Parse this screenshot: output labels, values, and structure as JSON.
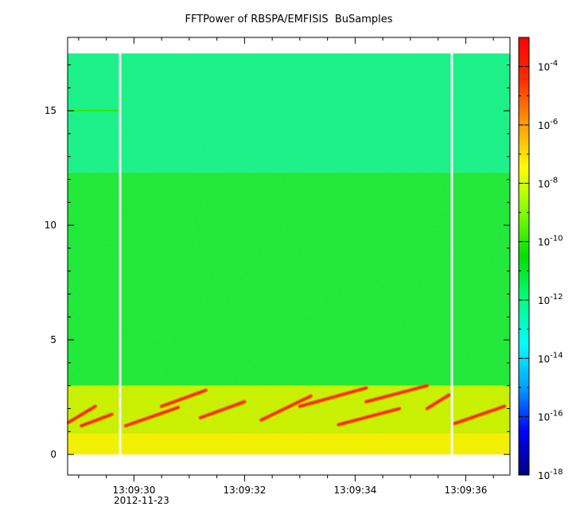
{
  "chart_data": {
    "type": "heatmap",
    "title": "FFTPower of RBSPA/EMFISIS  BuSamples",
    "xlabel": "",
    "ylabel": "",
    "x_axis": {
      "ticks": [
        "13:09:30",
        "13:09:32",
        "13:09:34",
        "13:09:36"
      ],
      "date_label": "2012-11-23",
      "range_seconds": [
        "13:09:28.8",
        "13:09:36.8"
      ]
    },
    "y_axis": {
      "ticks": [
        0,
        5,
        10,
        15
      ],
      "ylim": [
        -0.9,
        18.2
      ]
    },
    "colorbar": {
      "scale": "log",
      "ticks": [
        {
          "base": "10",
          "exp": "-4",
          "value": 0.0001
        },
        {
          "base": "10",
          "exp": "-6",
          "value": 1e-06
        },
        {
          "base": "10",
          "exp": "-8",
          "value": 1e-08
        },
        {
          "base": "10",
          "exp": "-10",
          "value": 1e-10
        },
        {
          "base": "10",
          "exp": "-12",
          "value": 1e-12
        },
        {
          "base": "10",
          "exp": "-14",
          "value": 1e-14
        },
        {
          "base": "10",
          "exp": "-16",
          "value": 1e-16
        },
        {
          "base": "10",
          "exp": "-18",
          "value": 1e-18
        }
      ],
      "range": [
        1e-18,
        0.001
      ],
      "colormap": [
        "#000080",
        "#0000ff",
        "#00a0ff",
        "#00ffff",
        "#00ff80",
        "#00e000",
        "#80ff00",
        "#ffff00",
        "#ffa000",
        "#ff3000",
        "#ff0000"
      ]
    },
    "bands": [
      {
        "y_from": 12.3,
        "y_to": 17.5,
        "power_exp": -12.0,
        "label_color": "#19f08a"
      },
      {
        "y_from": 3.0,
        "y_to": 12.3,
        "power_exp": -10.2,
        "label_color": "#1fe83a"
      },
      {
        "y_from": 0.9,
        "y_to": 3.0,
        "power_exp": -8.3,
        "label_color": "#c8f000"
      },
      {
        "y_from": 0.0,
        "y_to": 0.9,
        "power_exp": -7.8,
        "label_color": "#f2f000"
      }
    ],
    "data_gaps_seconds": [
      29.75,
      35.75
    ],
    "line_feature": {
      "y": 15.0,
      "x_from": 28.8,
      "x_to": 29.75,
      "power_exp": -10.0
    },
    "chorus_streaks": [
      {
        "x_start": 28.82,
        "y_start": 1.4,
        "x_end": 29.3,
        "y_end": 2.1
      },
      {
        "x_start": 29.05,
        "y_start": 1.25,
        "x_end": 29.6,
        "y_end": 1.75
      },
      {
        "x_start": 29.85,
        "y_start": 1.25,
        "x_end": 30.8,
        "y_end": 2.05
      },
      {
        "x_start": 30.5,
        "y_start": 2.1,
        "x_end": 31.3,
        "y_end": 2.8
      },
      {
        "x_start": 31.2,
        "y_start": 1.6,
        "x_end": 32.0,
        "y_end": 2.3
      },
      {
        "x_start": 32.3,
        "y_start": 1.5,
        "x_end": 33.2,
        "y_end": 2.55
      },
      {
        "x_start": 33.0,
        "y_start": 2.1,
        "x_end": 34.2,
        "y_end": 2.9
      },
      {
        "x_start": 33.7,
        "y_start": 1.3,
        "x_end": 34.8,
        "y_end": 2.0
      },
      {
        "x_start": 34.2,
        "y_start": 2.3,
        "x_end": 35.3,
        "y_end": 3.0
      },
      {
        "x_start": 35.8,
        "y_start": 1.35,
        "x_end": 36.7,
        "y_end": 2.1
      },
      {
        "x_start": 35.3,
        "y_start": 2.0,
        "x_end": 35.7,
        "y_end": 2.6
      }
    ]
  }
}
